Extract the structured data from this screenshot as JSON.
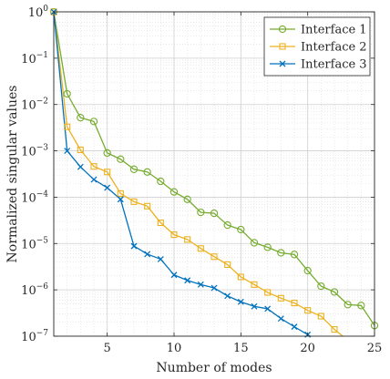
{
  "chart_data": {
    "type": "line",
    "title": "",
    "xlabel": "Number of modes",
    "ylabel": "Normalized singular values",
    "xlim": [
      1,
      25
    ],
    "ylim": [
      1e-07,
      1
    ],
    "yscale": "log",
    "grid": true,
    "legend_position": "top-right",
    "x_ticks": [
      5,
      10,
      15,
      20,
      25
    ],
    "y_ticks": [
      {
        "value": 1e-07,
        "base": "10",
        "exp": "−7"
      },
      {
        "value": 1e-06,
        "base": "10",
        "exp": "−6"
      },
      {
        "value": 1e-05,
        "base": "10",
        "exp": "−5"
      },
      {
        "value": 0.0001,
        "base": "10",
        "exp": "−4"
      },
      {
        "value": 0.001,
        "base": "10",
        "exp": "−3"
      },
      {
        "value": 0.01,
        "base": "10",
        "exp": "−2"
      },
      {
        "value": 0.1,
        "base": "10",
        "exp": "−1"
      },
      {
        "value": 1,
        "base": "10",
        "exp": "0"
      }
    ],
    "series": [
      {
        "name": "Interface 1",
        "color": "#77ac30",
        "marker": "circle",
        "x": [
          1,
          2,
          3,
          4,
          5,
          6,
          7,
          8,
          9,
          10,
          11,
          12,
          13,
          14,
          15,
          16,
          17,
          18,
          19,
          20,
          21,
          22,
          23,
          24,
          25
        ],
        "y": [
          1,
          0.017,
          0.0052,
          0.0043,
          0.0009,
          0.00066,
          0.0004,
          0.00035,
          0.00022,
          0.00013,
          9e-05,
          4.7e-05,
          4.5e-05,
          2.5e-05,
          2e-05,
          1.04e-05,
          8.3e-06,
          6.3e-06,
          5.8e-06,
          2.6e-06,
          1.2e-06,
          9e-07,
          4.8e-07,
          4.6e-07,
          1.7e-07
        ]
      },
      {
        "name": "Interface 2",
        "color": "#edb120",
        "marker": "square",
        "x": [
          1,
          2,
          3,
          4,
          5,
          6,
          7,
          8,
          9,
          10,
          11,
          12,
          13,
          14,
          15,
          16,
          17,
          18,
          19,
          20,
          21,
          22,
          23,
          24
        ],
        "y": [
          1,
          0.0033,
          0.00105,
          0.00046,
          0.00035,
          0.00012,
          8e-05,
          6.4e-05,
          2.8e-05,
          1.55e-05,
          1.22e-05,
          7.8e-06,
          5.2e-06,
          3.5e-06,
          1.9e-06,
          1.3e-06,
          8.8e-07,
          6.6e-07,
          5.2e-07,
          3.6e-07,
          2.7e-07,
          1.4e-07,
          8.2e-08,
          4.5e-08
        ]
      },
      {
        "name": "Interface 3",
        "color": "#0072bd",
        "marker": "x",
        "x": [
          1,
          2,
          3,
          4,
          5,
          6,
          7,
          8,
          9,
          10,
          11,
          12,
          13,
          14,
          15,
          16,
          17,
          18,
          19,
          20,
          21
        ],
        "y": [
          1,
          0.001,
          0.00045,
          0.00024,
          0.00016,
          9e-05,
          8.8e-06,
          5.9e-06,
          4.6e-06,
          2.1e-06,
          1.6e-06,
          1.3e-06,
          1.1e-06,
          7.4e-07,
          5.5e-07,
          4.4e-07,
          3.9e-07,
          2.4e-07,
          1.6e-07,
          1.08e-07,
          7e-08
        ]
      }
    ]
  }
}
